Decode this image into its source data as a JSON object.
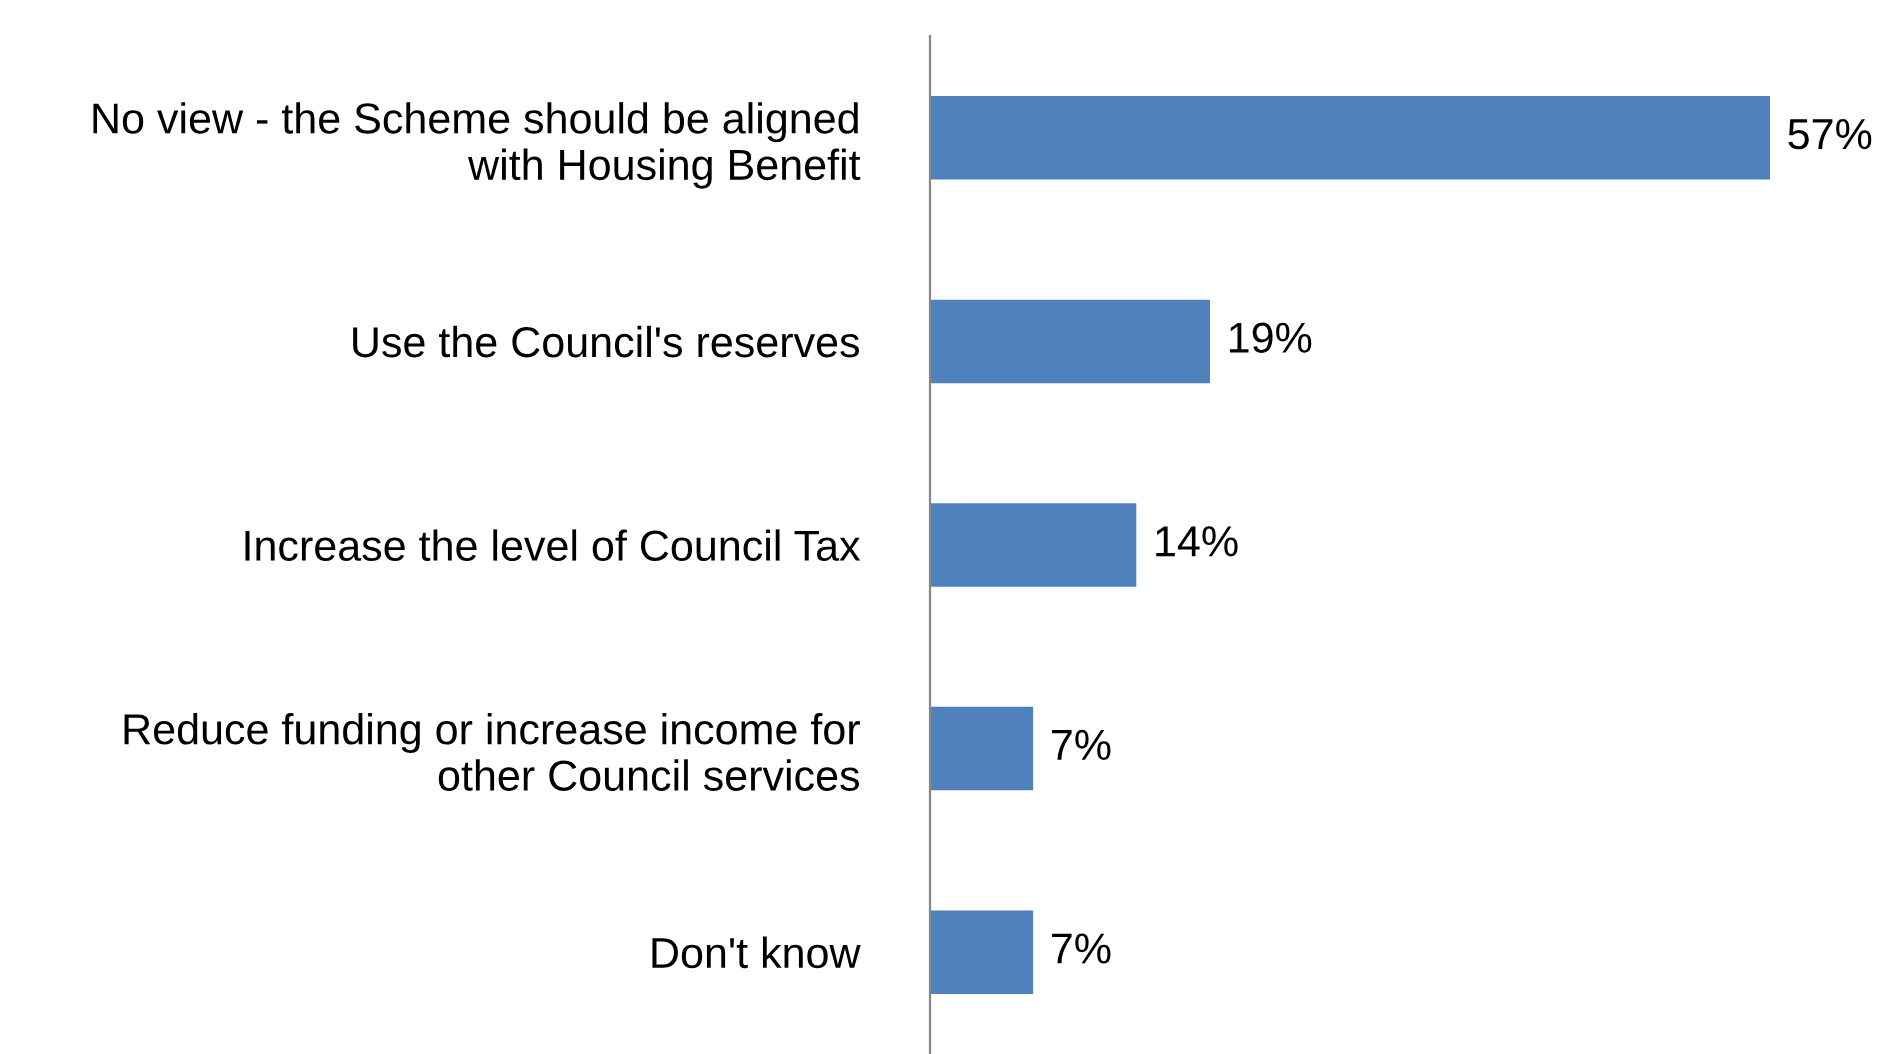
{
  "chart_data": {
    "type": "bar",
    "orientation": "horizontal",
    "categories": [
      "No view - the Scheme should be aligned\nwith Housing Benefit",
      "Use the Council's reserves",
      "Increase the level of Council Tax",
      "Reduce funding or increase income for\nother Council services",
      "Don't know"
    ],
    "values": [
      57,
      19,
      14,
      7,
      7
    ],
    "value_labels": [
      "57%",
      "19%",
      "14%",
      "7%",
      "7%"
    ],
    "color": "#4f81bd",
    "grid": false,
    "legend": false
  }
}
